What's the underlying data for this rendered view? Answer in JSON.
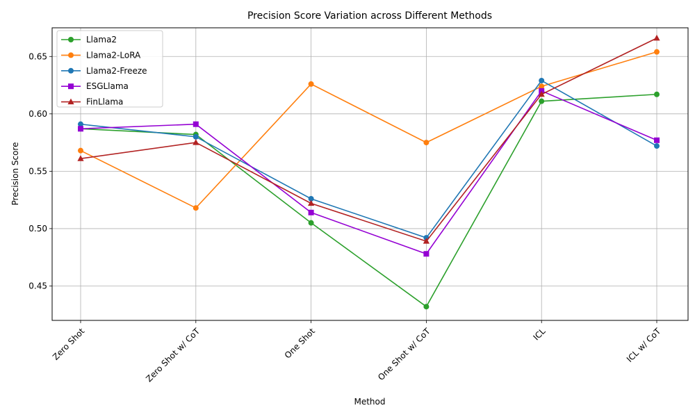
{
  "chart_data": {
    "type": "line",
    "title": "Precision Score Variation across Different Methods",
    "xlabel": "Method",
    "ylabel": "Precision Score",
    "categories": [
      "Zero Shot",
      "Zero Shot w/ CoT",
      "One Shot",
      "One Shot w/ CoT",
      "ICL",
      "ICL w/ CoT"
    ],
    "ylim": [
      0.42,
      0.675
    ],
    "yticks": [
      "0.45",
      "0.50",
      "0.55",
      "0.60",
      "0.65"
    ],
    "grid": true,
    "legend_position": "top-left",
    "series": [
      {
        "name": "Llama2",
        "color": "#2ca02c",
        "marker": "circle",
        "values": [
          0.587,
          0.582,
          0.505,
          0.432,
          0.611,
          0.617
        ]
      },
      {
        "name": "Llama2-LoRA",
        "color": "#ff7f0e",
        "marker": "circle",
        "values": [
          0.568,
          0.518,
          0.626,
          0.575,
          0.624,
          0.654
        ]
      },
      {
        "name": "Llama2-Freeze",
        "color": "#1f77b4",
        "marker": "circle",
        "values": [
          0.591,
          0.58,
          0.526,
          0.492,
          0.629,
          0.572
        ]
      },
      {
        "name": "ESGLlama",
        "color": "#9400d3",
        "marker": "square",
        "values": [
          0.587,
          0.591,
          0.514,
          0.478,
          0.62,
          0.577
        ]
      },
      {
        "name": "FinLlama",
        "color": "#b22222",
        "marker": "triangle",
        "values": [
          0.561,
          0.575,
          0.522,
          0.489,
          0.617,
          0.666
        ]
      }
    ]
  }
}
